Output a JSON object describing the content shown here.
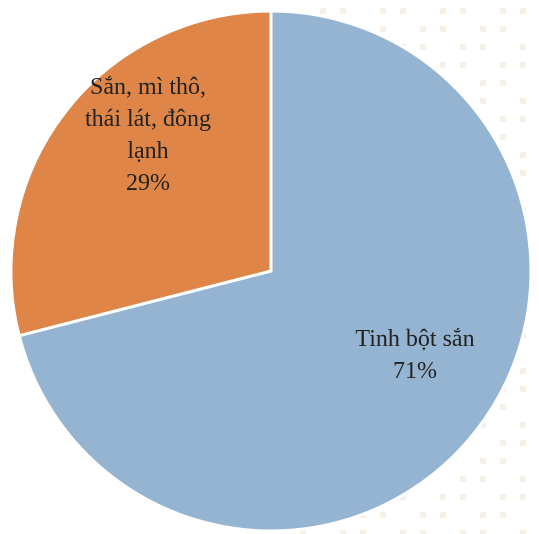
{
  "chart_data": {
    "type": "pie",
    "title": "",
    "slices": [
      {
        "name": "Tinh bột sắn",
        "value": 71,
        "label_lines": [
          "Tinh bột sắn",
          "71%"
        ],
        "color": "#95b4d2"
      },
      {
        "name": "Sắn, mì thô, thái lát, đông lạnh",
        "value": 29,
        "label_lines": [
          "Sắn, mì thô,",
          "thái lát, đông",
          "lạnh",
          "29%"
        ],
        "color": "#de8547"
      }
    ],
    "start_angle_deg": 0,
    "direction": "clockwise",
    "legend": "none",
    "border_color": "#ffffff"
  },
  "background": {
    "pattern_color": "#efe4d2",
    "page_color": "#ffffff"
  }
}
